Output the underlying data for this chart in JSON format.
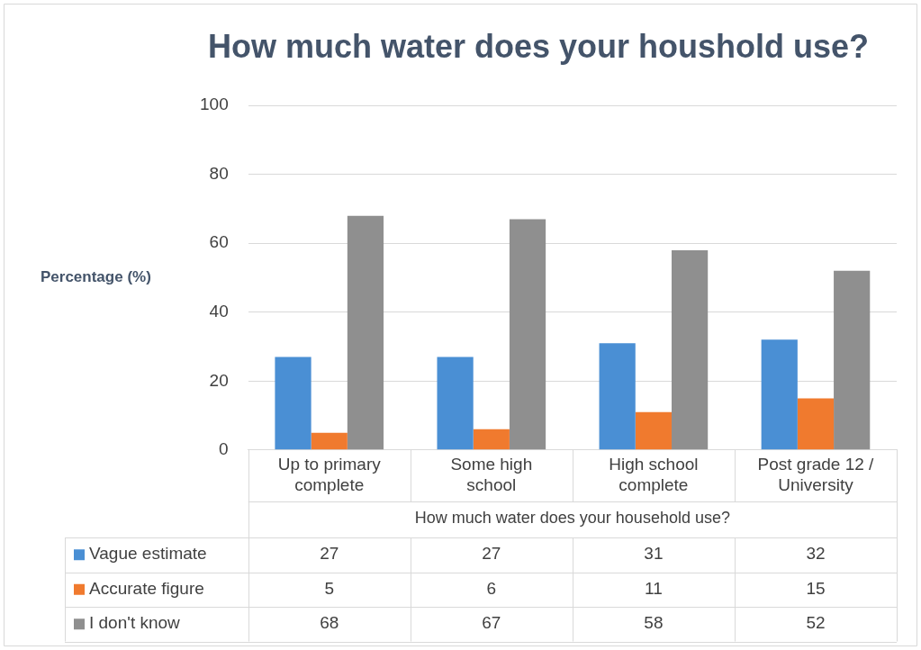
{
  "chart_data": {
    "type": "bar",
    "title": "How much water does your houshold use?",
    "xlabel": "How much water does your household use?",
    "ylabel": "Percentage (%)",
    "categories": [
      "Up to primary complete",
      "Some high school",
      "High school complete",
      "Post grade 12 / University"
    ],
    "series": [
      {
        "name": "Vague estimate",
        "color": "#4a8fd4",
        "values": [
          27,
          27,
          31,
          32
        ]
      },
      {
        "name": "Accurate figure",
        "color": "#f07a2e",
        "values": [
          5,
          6,
          11,
          15
        ]
      },
      {
        "name": "I don't know",
        "color": "#8f8f8f",
        "values": [
          68,
          67,
          58,
          52
        ]
      }
    ],
    "ylim": [
      0,
      100
    ],
    "yticks": [
      0,
      20,
      40,
      60,
      80,
      100
    ],
    "grid": "y",
    "legend": "bottom",
    "data_labels": true
  }
}
